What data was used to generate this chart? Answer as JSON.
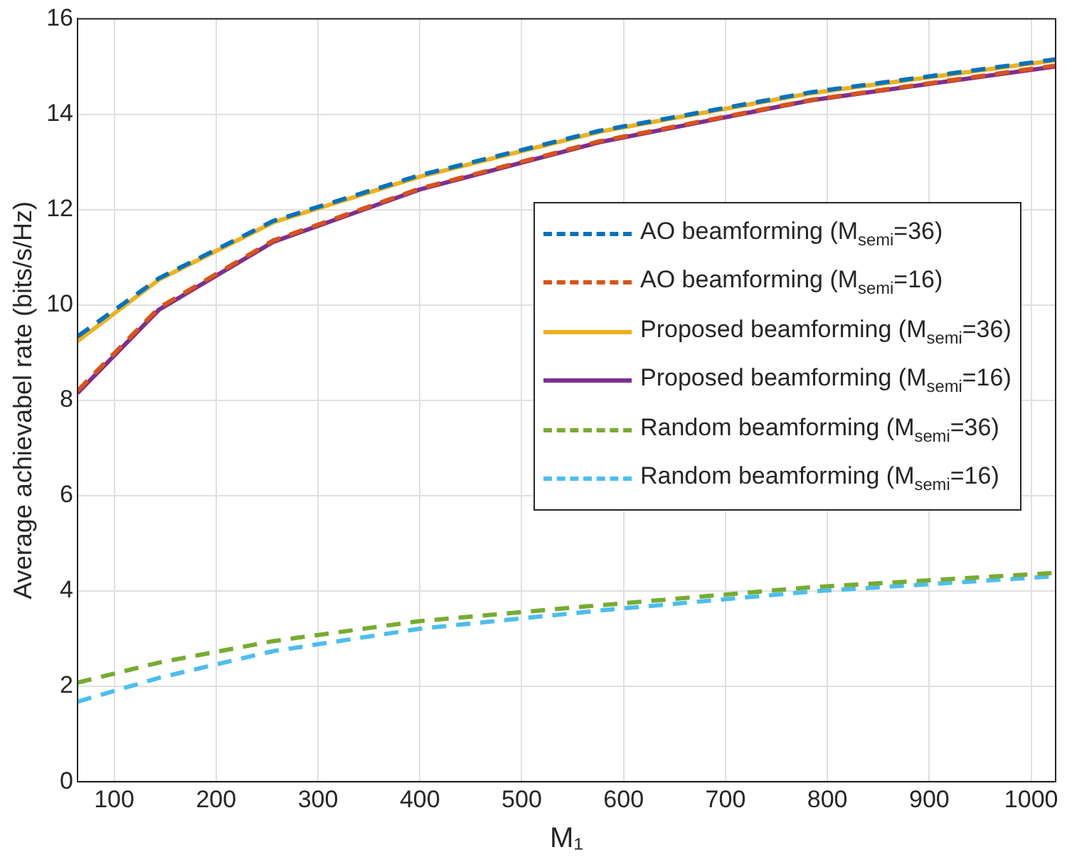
{
  "chart_data": {
    "type": "line",
    "xlabel": "M₁",
    "ylabel": "Average achievabel rate (bits/s/Hz)",
    "x": [
      64,
      144,
      256,
      400,
      576,
      784,
      1024
    ],
    "xlim": [
      64,
      1024
    ],
    "xticks": [
      100,
      200,
      300,
      400,
      500,
      600,
      700,
      800,
      900,
      1000
    ],
    "ylim": [
      0,
      16
    ],
    "yticks": [
      0,
      2,
      4,
      6,
      8,
      10,
      12,
      14,
      16
    ],
    "grid": true,
    "legend": "right",
    "marker": "none",
    "series": [
      {
        "name": "AO beamforming (M$_{semi}$=36)",
        "color": "#0072bd",
        "line_style": "dashed",
        "values": [
          9.34,
          10.56,
          11.76,
          12.72,
          13.65,
          14.46,
          15.15
        ]
      },
      {
        "name": "AO beamforming (M$_{semi}$=16)",
        "color": "#d95319",
        "line_style": "dashed",
        "values": [
          8.2,
          9.94,
          11.35,
          12.44,
          13.43,
          14.3,
          15.02
        ]
      },
      {
        "name": "Proposed beamforming (M$_{semi}$=36)",
        "color": "#edb120",
        "line_style": "solid",
        "values": [
          9.24,
          10.53,
          11.73,
          12.69,
          13.63,
          14.44,
          15.13
        ]
      },
      {
        "name": "Proposed beamforming (M$_{semi}$=16)",
        "color": "#7e2f8e",
        "line_style": "solid",
        "values": [
          8.15,
          9.9,
          11.32,
          12.42,
          13.41,
          14.29,
          15.0
        ]
      },
      {
        "name": "Random beamforming (M$_{semi}$=36)",
        "color": "#77ac30",
        "line_style": "dashed",
        "values": [
          2.08,
          2.5,
          2.95,
          3.37,
          3.7,
          4.08,
          4.38
        ]
      },
      {
        "name": "Random beamforming (M$_{semi}$=16)",
        "color": "#4dbeee",
        "line_style": "dashed",
        "values": [
          1.68,
          2.18,
          2.74,
          3.21,
          3.59,
          3.99,
          4.31
        ]
      }
    ]
  }
}
